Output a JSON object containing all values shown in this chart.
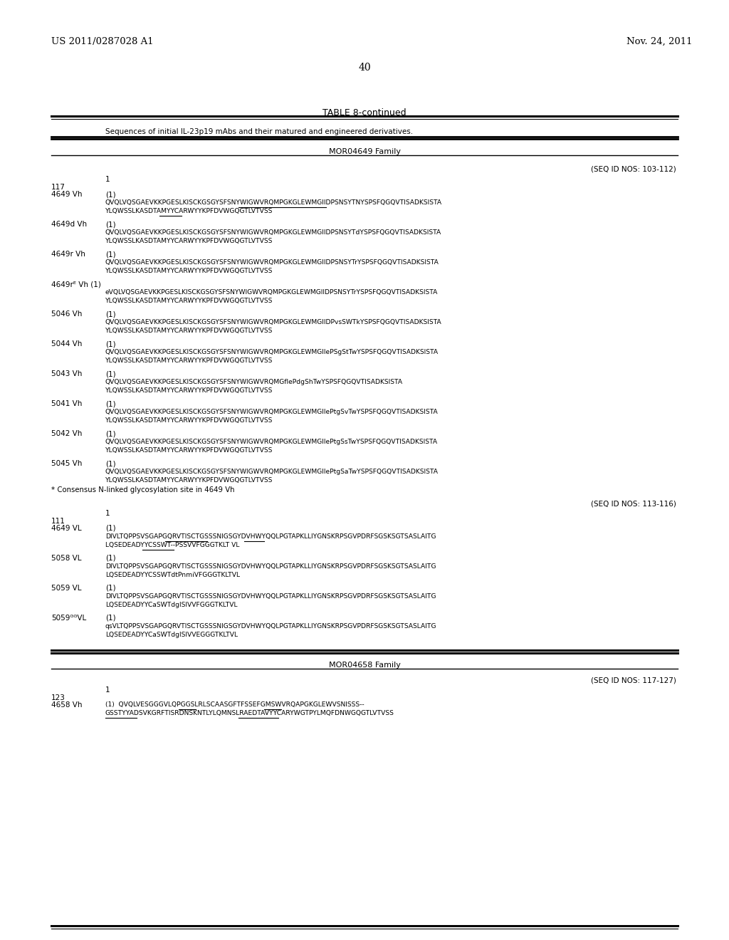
{
  "header_left": "US 2011/0287028 A1",
  "header_right": "Nov. 24, 2011",
  "page_number": "40",
  "table_title": "TABLE 8-continued",
  "table_subtitle": "Sequences of initial IL-23p19 mAbs and their matured and engineered derivatives.",
  "family1_header": "MOR04649 Family",
  "seqid1": "(SEQ ID NOS: 103-112)",
  "seqid2": "(SEQ ID NOS: 113-116)",
  "seqid3": "(SEQ ID NOS: 117-127)",
  "background_color": "#ffffff",
  "text_color": "#000000"
}
